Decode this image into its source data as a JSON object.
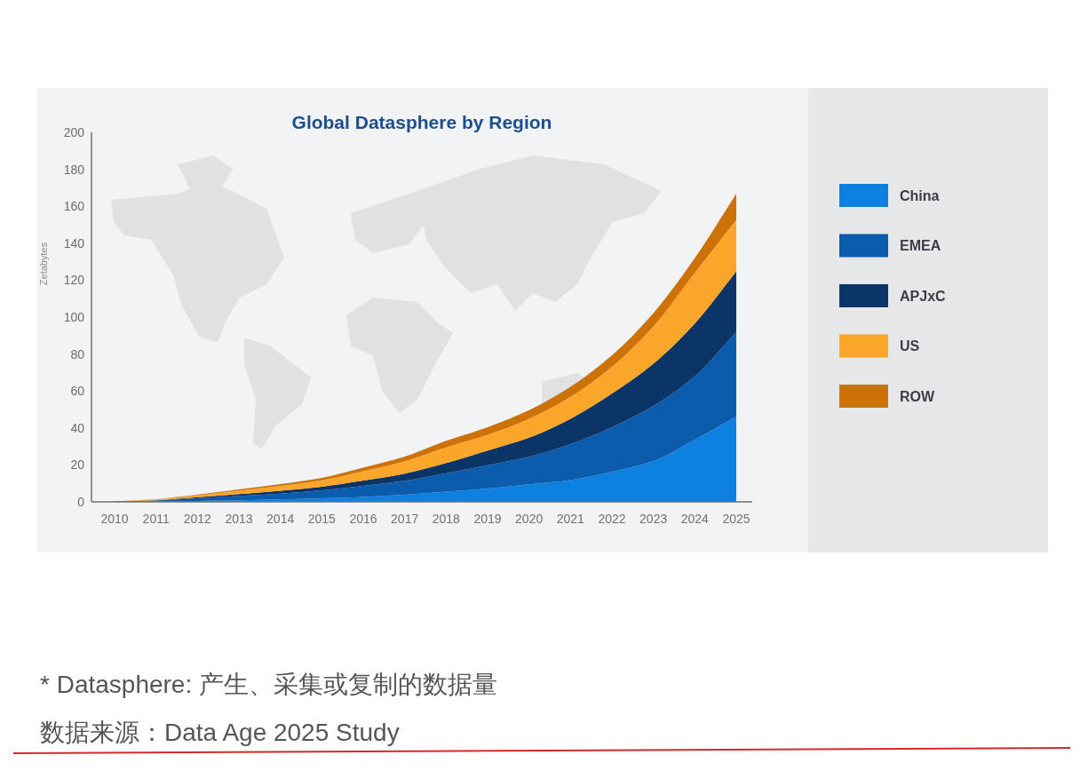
{
  "chart_data": {
    "type": "area",
    "title": "Global Datasphere by Region",
    "ylabel": "Zetabytes",
    "categories": [
      "2010",
      "2011",
      "2012",
      "2013",
      "2014",
      "2015",
      "2016",
      "2017",
      "2018",
      "2019",
      "2020",
      "2021",
      "2022",
      "2023",
      "2024",
      "2025"
    ],
    "stacked": true,
    "series": [
      {
        "name": "China",
        "color": "#0d80e0",
        "values": [
          0,
          0.2,
          0.5,
          0.9,
          1.3,
          1.9,
          2.7,
          3.8,
          5.5,
          7.2,
          9.5,
          11.8,
          16.3,
          22.1,
          33.6,
          46.2
        ]
      },
      {
        "name": "EMEA",
        "color": "#0b5cad",
        "values": [
          0.1,
          0.5,
          1.4,
          2.3,
          3.2,
          4.3,
          5.9,
          7.6,
          10,
          12.6,
          14.9,
          19.5,
          24.1,
          29.8,
          34.3,
          45.7
        ]
      },
      {
        "name": "APJxC",
        "color": "#0b3467",
        "values": [
          0.1,
          0.2,
          0.6,
          1,
          1.5,
          2,
          2.9,
          3.9,
          5.5,
          8,
          10.3,
          13.7,
          18.3,
          22.9,
          28.6,
          32.8
        ]
      },
      {
        "name": "US",
        "color": "#f9a62b",
        "values": [
          0.1,
          0.4,
          1.1,
          1.8,
          2.6,
          3.5,
          5.1,
          6.7,
          8.5,
          8.5,
          10.3,
          11.9,
          14.4,
          20.1,
          27.5,
          27.9
        ]
      },
      {
        "name": "ROW",
        "color": "#cc7207",
        "values": [
          0,
          0.2,
          0.4,
          0.7,
          1,
          1.3,
          1.9,
          2.5,
          3.5,
          4.1,
          4.6,
          5.3,
          6.2,
          7.3,
          8,
          14.2
        ]
      }
    ],
    "ylim": [
      0,
      200
    ],
    "yticks": [
      0,
      20,
      40,
      60,
      80,
      100,
      120,
      140,
      160,
      180,
      200
    ],
    "legend": "right",
    "annotations": [
      "* Datasphere: 产生、采集或复制的数据量",
      "数据来源：Data Age 2025 Study"
    ]
  }
}
